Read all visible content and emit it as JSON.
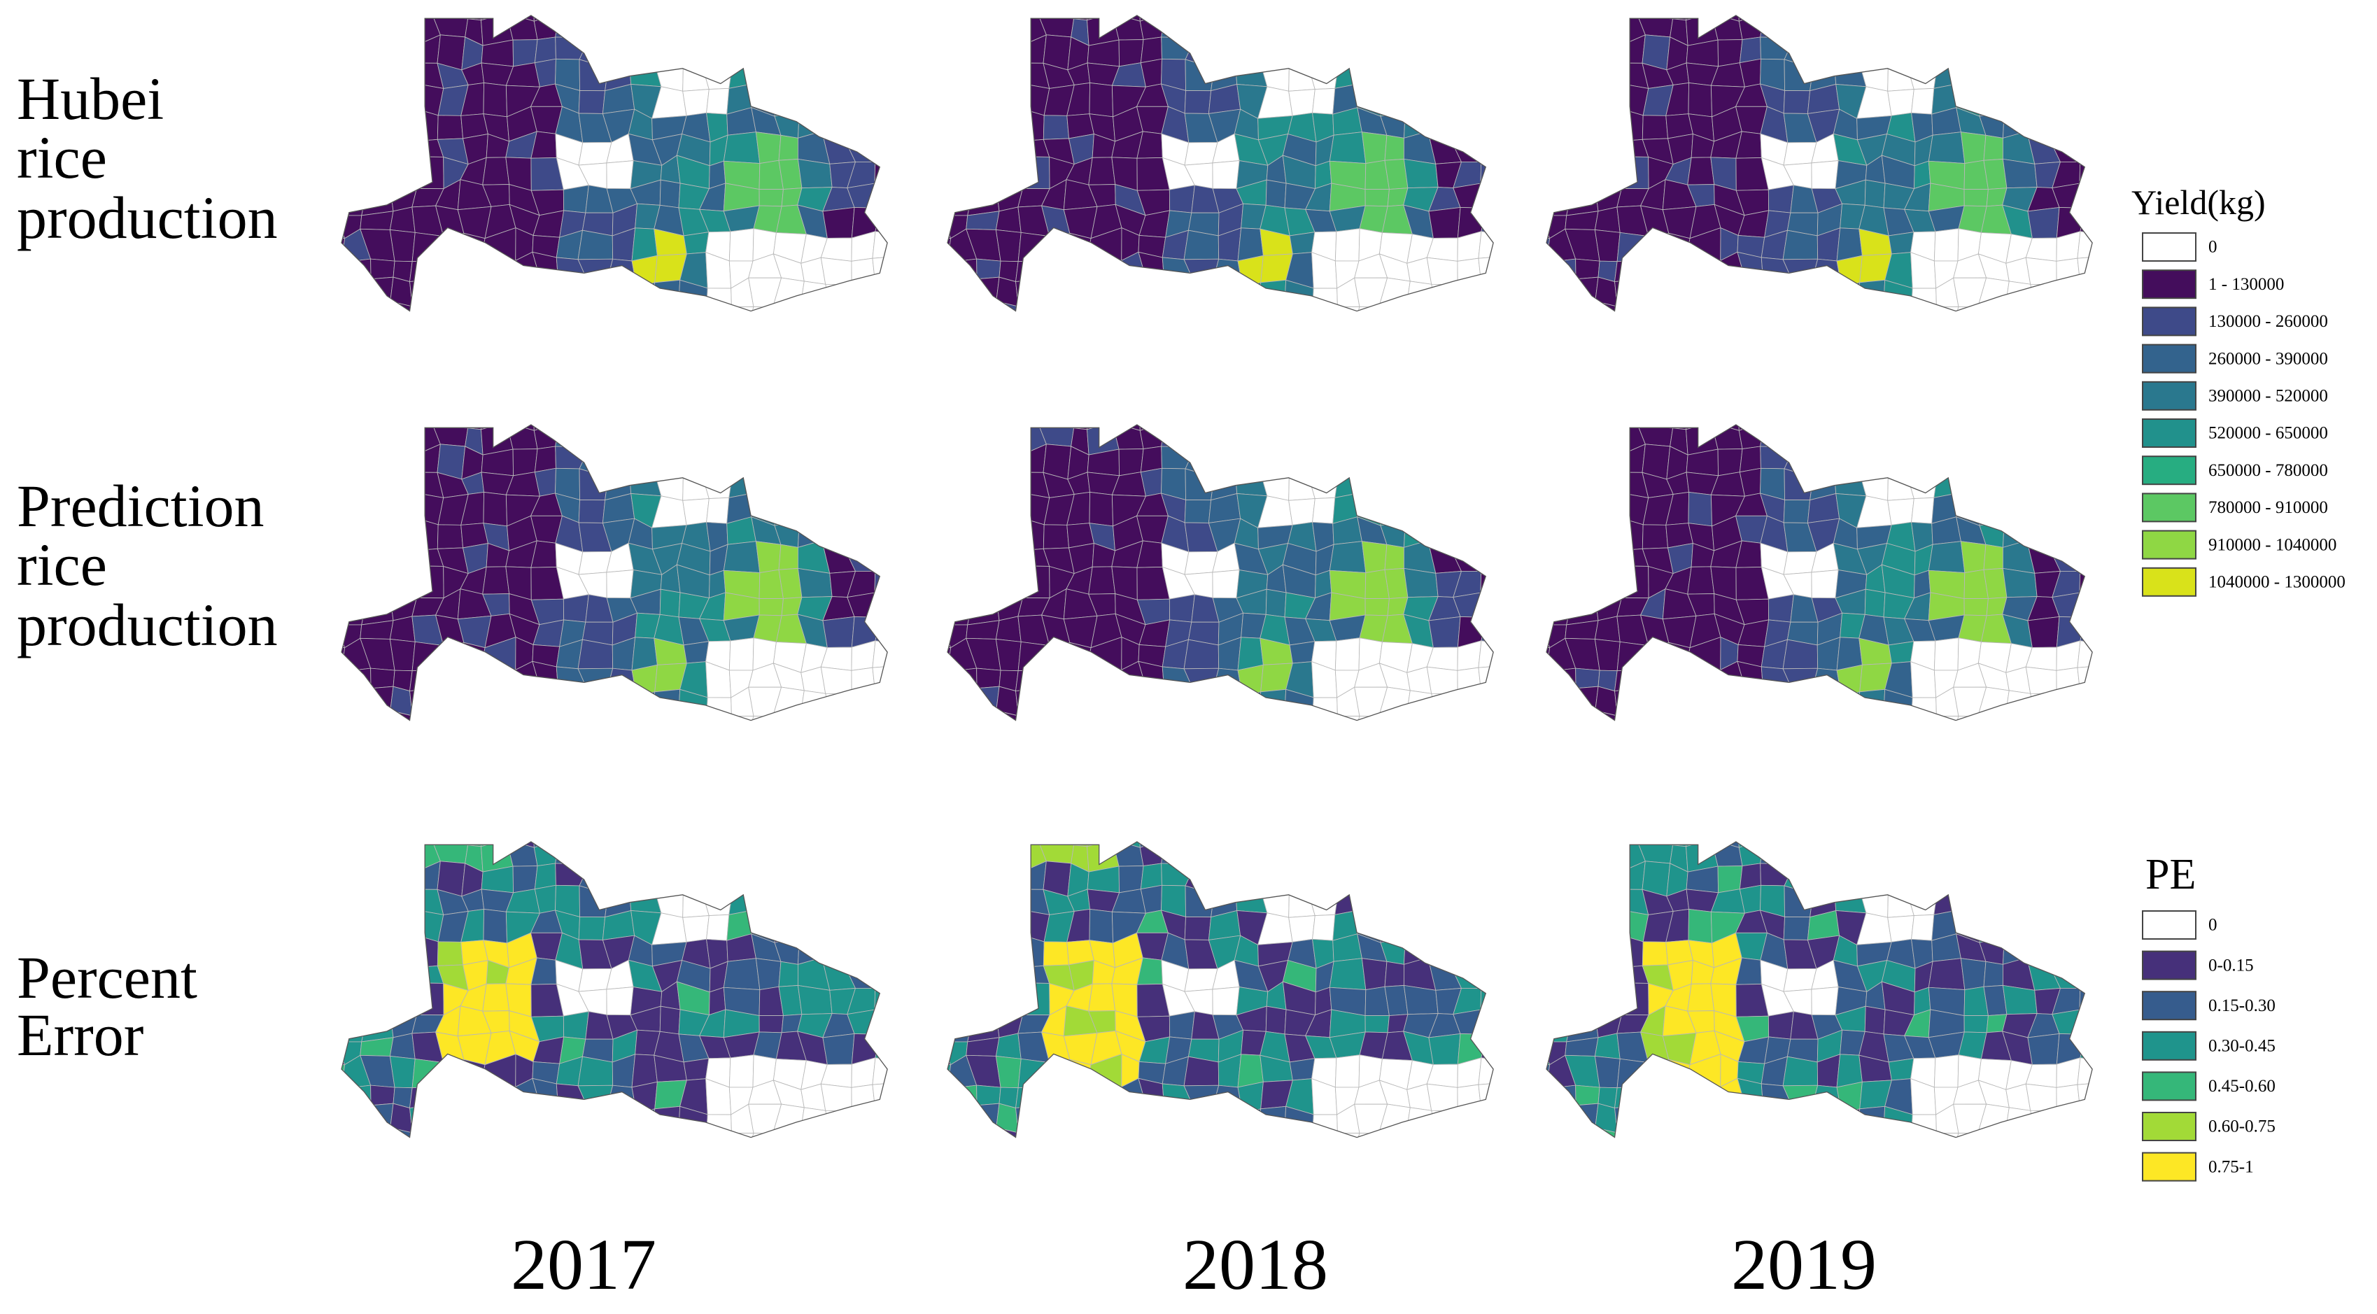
{
  "row_labels": [
    [
      "Hubei",
      "rice",
      "production"
    ],
    [
      "Prediction",
      "rice",
      "production"
    ],
    [
      "Percent",
      "Error"
    ]
  ],
  "column_labels": [
    "2017",
    "2018",
    "2019"
  ],
  "yield_legend": {
    "title": "Yield(kg)",
    "items": [
      {
        "label": "0",
        "color": "#ffffff"
      },
      {
        "label": "1 - 130000",
        "color": "#440d5c"
      },
      {
        "label": "130000 - 260000",
        "color": "#3e4a89"
      },
      {
        "label": "260000 - 390000",
        "color": "#33638d"
      },
      {
        "label": "390000 - 520000",
        "color": "#2a788e"
      },
      {
        "label": "520000 - 650000",
        "color": "#21918c"
      },
      {
        "label": "650000 - 780000",
        "color": "#27ad81"
      },
      {
        "label": "780000 - 910000",
        "color": "#5cc863"
      },
      {
        "label": "910000 - 1040000",
        "color": "#8fd744"
      },
      {
        "label": "1040000 - 1300000",
        "color": "#d9e21a"
      }
    ]
  },
  "pe_legend": {
    "title": "PE",
    "items": [
      {
        "label": "0",
        "color": "#ffffff"
      },
      {
        "label": "0-0.15",
        "color": "#46307a"
      },
      {
        "label": "0.15-0.30",
        "color": "#365c8d"
      },
      {
        "label": "0.30-0.45",
        "color": "#1f948c"
      },
      {
        "label": "0.45-0.60",
        "color": "#35b779"
      },
      {
        "label": "0.60-0.75",
        "color": "#a2da37"
      },
      {
        "label": "0.75-1",
        "color": "#fde725"
      }
    ]
  }
}
